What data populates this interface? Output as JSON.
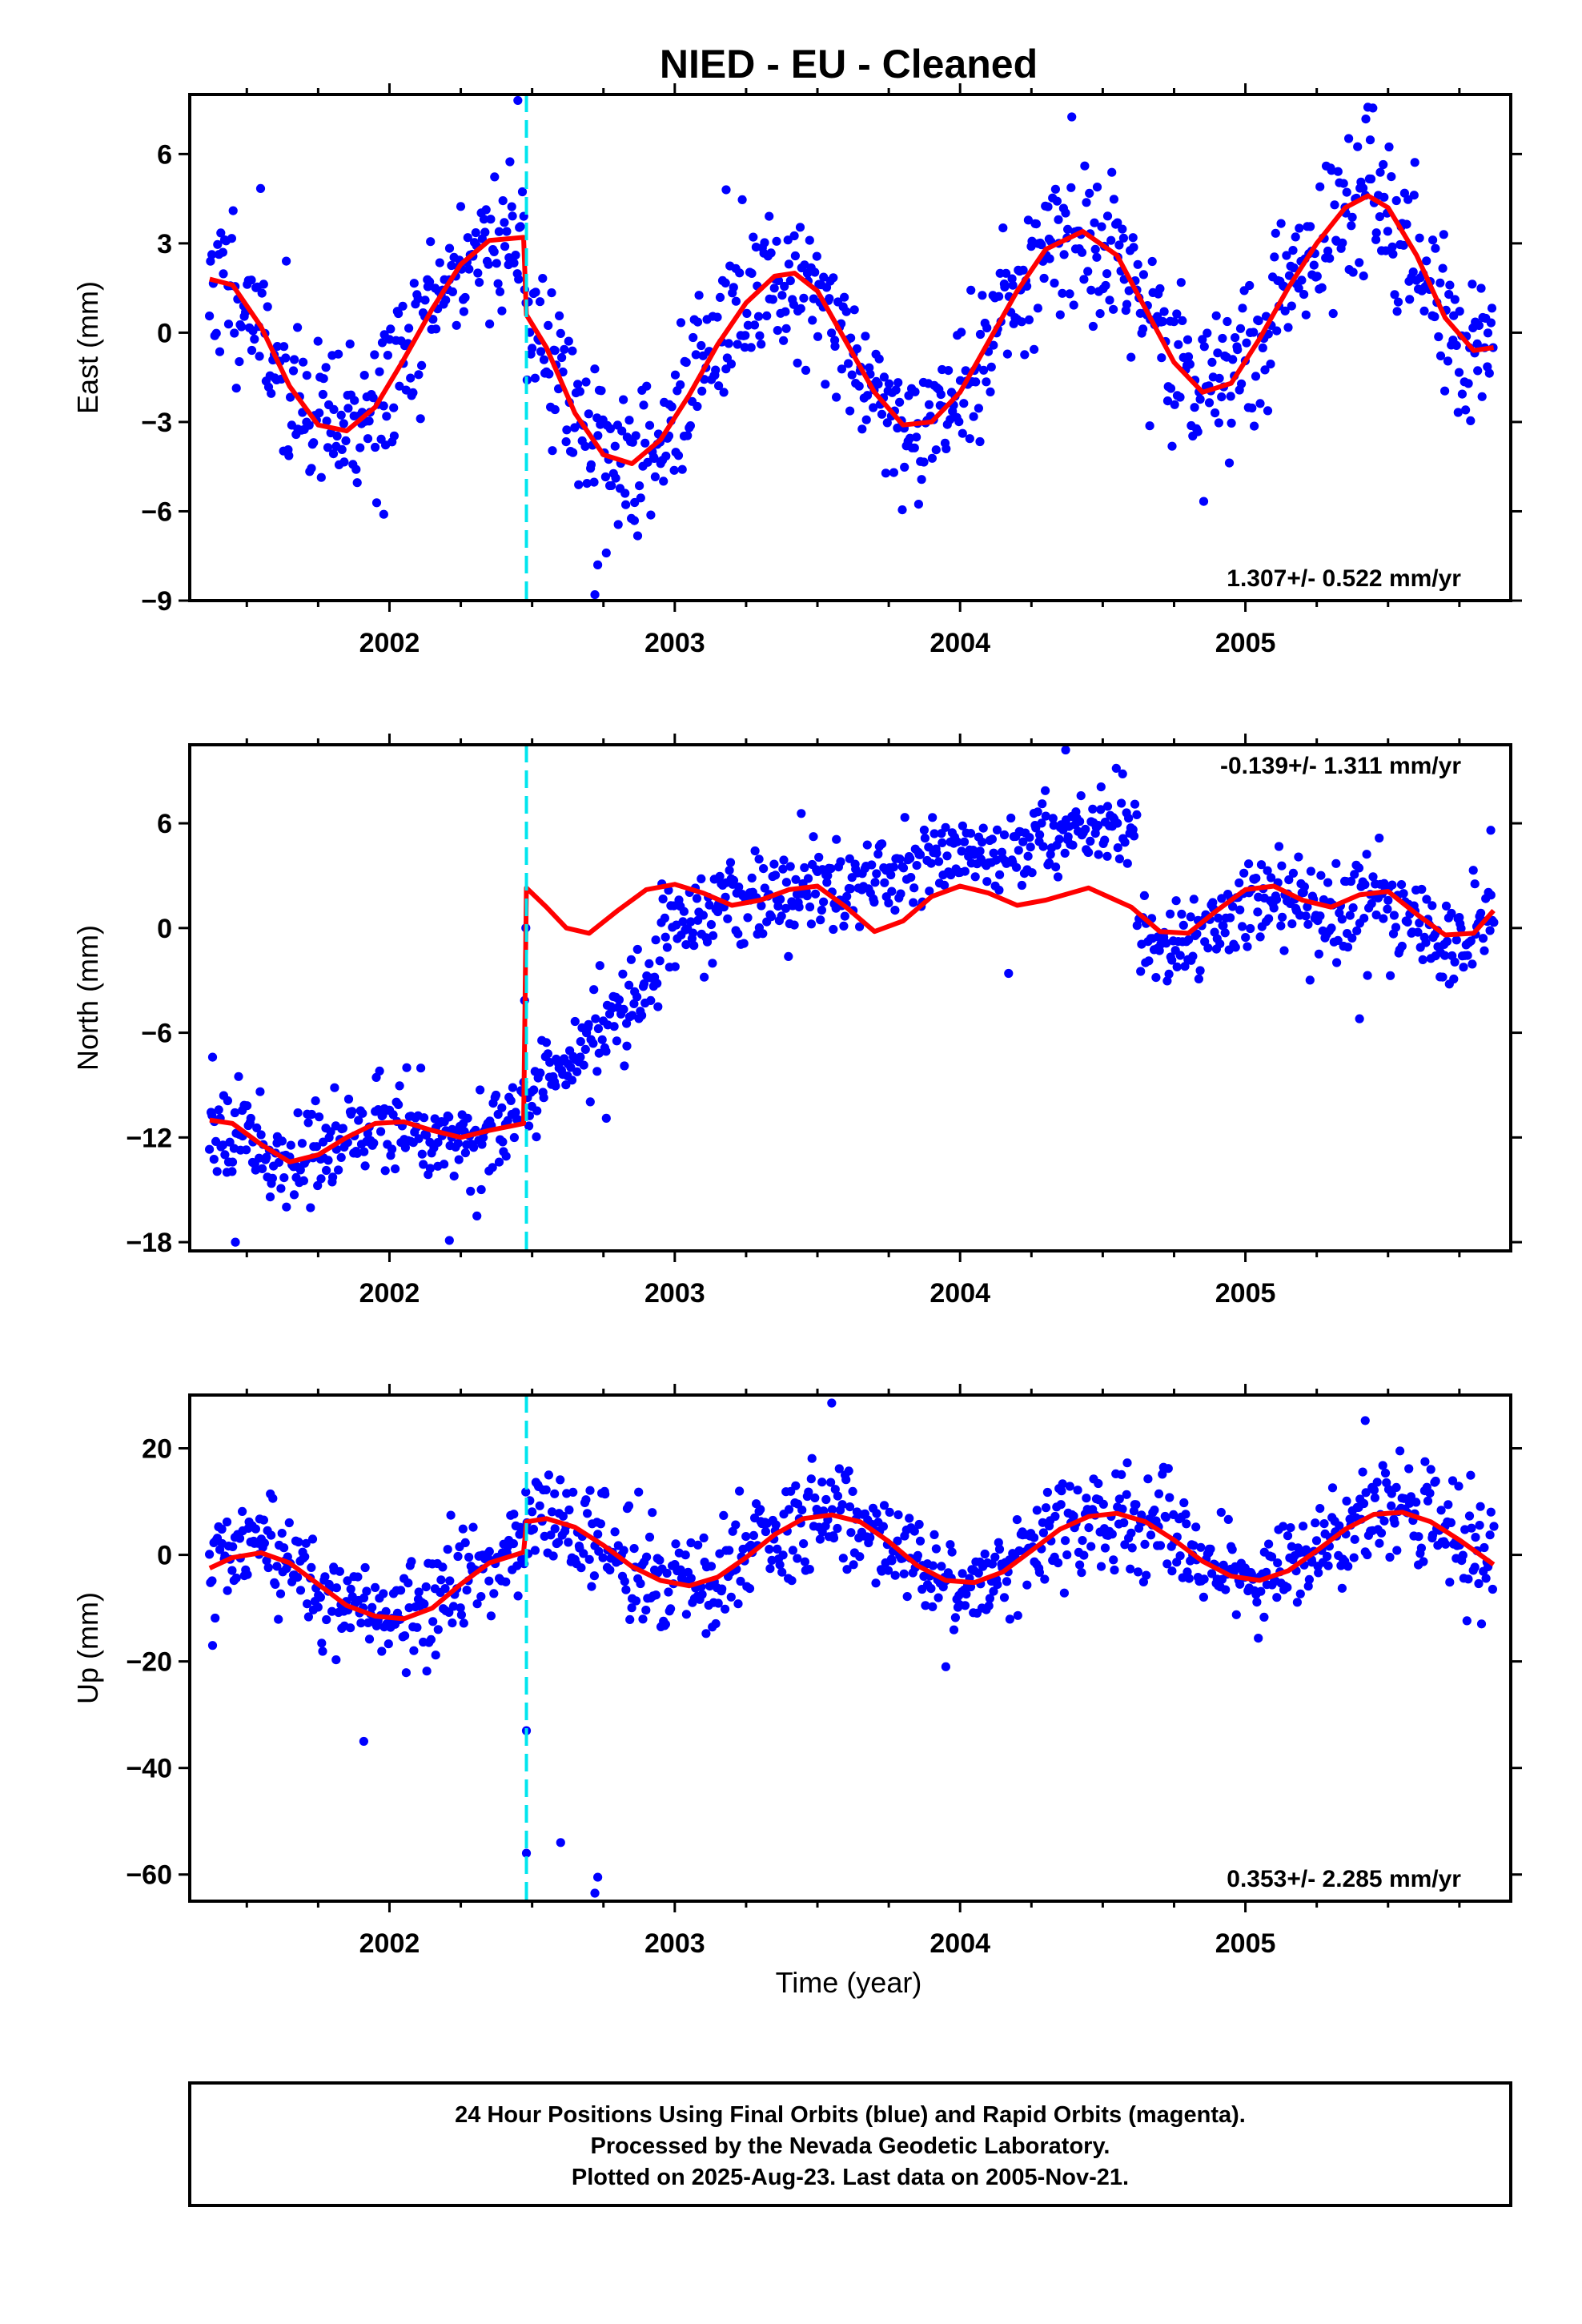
{
  "title": "NIED  - EU - Cleaned",
  "x_axis_label": "Time (year)",
  "footer": {
    "lines": [
      "24 Hour Positions Using Final Orbits (blue) and Rapid Orbits (magenta).",
      "Processed by the Nevada Geodetic Laboratory.",
      "Plotted on 2025-Aug-23. Last data on 2005-Nov-21."
    ]
  },
  "colors": {
    "points": "#0000ff",
    "model": "#ff0000",
    "offset_line": "#00e5ee"
  },
  "chart_data": [
    {
      "type": "scatter",
      "ylabel": "East (mm)",
      "xlim": [
        2001.3,
        2005.93
      ],
      "ylim": [
        -9,
        8
      ],
      "xticks": [
        2002,
        2003,
        2004,
        2005
      ],
      "yticks": [
        -9,
        -6,
        -3,
        0,
        3,
        6
      ],
      "yticklabels": [
        "−9",
        "−6",
        "−3",
        "0",
        "3",
        "6"
      ],
      "offset_epoch": 2002.48,
      "rate_text": "1.307+/- 0.522 mm/yr",
      "rate_position": "bottom-right",
      "model": {
        "x": [
          2001.37,
          2001.45,
          2001.55,
          2001.65,
          2001.75,
          2001.85,
          2001.95,
          2002.05,
          2002.15,
          2002.25,
          2002.35,
          2002.47,
          2002.48,
          2002.55,
          2002.65,
          2002.75,
          2002.85,
          2002.95,
          2003.05,
          2003.15,
          2003.25,
          2003.35,
          2003.42,
          2003.5,
          2003.6,
          2003.7,
          2003.8,
          2003.9,
          2004.0,
          2004.1,
          2004.2,
          2004.3,
          2004.43,
          2004.55,
          2004.65,
          2004.75,
          2004.85,
          2004.95,
          2005.05,
          2005.15,
          2005.25,
          2005.35,
          2005.43,
          2005.5,
          2005.6,
          2005.7,
          2005.8,
          2005.87
        ],
        "y": [
          1.8,
          1.6,
          0.2,
          -1.8,
          -3.1,
          -3.3,
          -2.5,
          -0.9,
          0.8,
          2.3,
          3.1,
          3.2,
          0.6,
          -0.5,
          -2.7,
          -4.1,
          -4.4,
          -3.6,
          -2.1,
          -0.4,
          1.0,
          1.9,
          2.0,
          1.4,
          -0.3,
          -2.0,
          -3.1,
          -3.0,
          -2.0,
          -0.3,
          1.4,
          2.8,
          3.4,
          2.6,
          0.8,
          -1.0,
          -2.0,
          -1.7,
          -0.2,
          1.5,
          3.0,
          4.2,
          4.6,
          4.2,
          2.6,
          0.5,
          -0.6,
          -0.5
        ]
      },
      "points": {
        "seed": 11,
        "count": 1000,
        "x_range": [
          2001.37,
          2005.87
        ],
        "scatter": 1.3,
        "outliers": [
          {
            "x": 2002.45,
            "y": 7.8
          },
          {
            "x": 2002.58,
            "y": -0.6
          },
          {
            "x": 2002.73,
            "y": -7.8
          },
          {
            "x": 2002.72,
            "y": -8.8
          },
          {
            "x": 2002.76,
            "y": -7.4
          },
          {
            "x": 2001.98,
            "y": -6.1
          },
          {
            "x": 2003.18,
            "y": 4.8
          }
        ]
      }
    },
    {
      "type": "scatter",
      "ylabel": "North (mm)",
      "xlim": [
        2001.3,
        2005.93
      ],
      "ylim": [
        -18.5,
        10.5
      ],
      "xticks": [
        2002,
        2003,
        2004,
        2005
      ],
      "yticks": [
        -18,
        -12,
        -6,
        0,
        6
      ],
      "yticklabels": [
        "−18",
        "−12",
        "−6",
        "0",
        "6"
      ],
      "offset_epoch": 2002.48,
      "rate_text": "-0.139+/- 1.311 mm/yr",
      "rate_position": "top-right",
      "model": {
        "x": [
          2001.37,
          2001.45,
          2001.55,
          2001.65,
          2001.75,
          2001.85,
          2001.95,
          2002.05,
          2002.15,
          2002.25,
          2002.35,
          2002.47,
          2002.48,
          2002.55,
          2002.62,
          2002.7,
          2002.8,
          2002.9,
          2003.0,
          2003.1,
          2003.2,
          2003.3,
          2003.4,
          2003.5,
          2003.6,
          2003.7,
          2003.8,
          2003.9,
          2004.0,
          2004.1,
          2004.2,
          2004.3,
          2004.45,
          2004.6,
          2004.7,
          2004.8,
          2004.9,
          2005.0,
          2005.1,
          2005.2,
          2005.3,
          2005.4,
          2005.5,
          2005.6,
          2005.7,
          2005.8,
          2005.87
        ],
        "y": [
          -11.0,
          -11.2,
          -12.4,
          -13.4,
          -13.0,
          -12.0,
          -11.2,
          -11.1,
          -11.6,
          -12.0,
          -11.6,
          -11.2,
          2.3,
          1.2,
          0.0,
          -0.3,
          1.0,
          2.2,
          2.5,
          2.0,
          1.3,
          1.6,
          2.2,
          2.4,
          1.2,
          -0.2,
          0.4,
          1.8,
          2.4,
          2.0,
          1.3,
          1.6,
          2.3,
          1.2,
          -0.2,
          -0.3,
          1.0,
          2.2,
          2.4,
          1.6,
          1.2,
          1.9,
          2.1,
          0.8,
          -0.4,
          -0.3,
          1.0
        ]
      },
      "points": {
        "seed": 23,
        "count": 1000,
        "x_range": [
          2001.37,
          2005.87
        ],
        "scatter": 1.3,
        "outliers": [
          {
            "x": 2001.38,
            "y": -7.4
          },
          {
            "x": 2001.46,
            "y": -18.0
          },
          {
            "x": 2002.21,
            "y": -17.9
          },
          {
            "x": 2004.37,
            "y": 10.2
          },
          {
            "x": 2004.17,
            "y": -2.6
          },
          {
            "x": 2005.4,
            "y": -5.2
          },
          {
            "x": 2005.86,
            "y": 5.6
          },
          {
            "x": 2002.76,
            "y": -10.9
          }
        ]
      }
    },
    {
      "type": "scatter",
      "ylabel": "Up (mm)",
      "xlim": [
        2001.3,
        2005.93
      ],
      "ylim": [
        -65,
        30
      ],
      "xticks": [
        2002,
        2003,
        2004,
        2005
      ],
      "yticks": [
        -60,
        -40,
        -20,
        0,
        20
      ],
      "yticklabels": [
        "−60",
        "−40",
        "−20",
        "0",
        "20"
      ],
      "offset_epoch": 2002.48,
      "rate_text": "0.353+/- 2.285 mm/yr",
      "rate_position": "bottom-right",
      "model": {
        "x": [
          2001.37,
          2001.45,
          2001.55,
          2001.65,
          2001.75,
          2001.85,
          2001.95,
          2002.05,
          2002.15,
          2002.25,
          2002.35,
          2002.47,
          2002.48,
          2002.55,
          2002.65,
          2002.75,
          2002.85,
          2002.95,
          2003.05,
          2003.15,
          2003.25,
          2003.35,
          2003.45,
          2003.55,
          2003.65,
          2003.75,
          2003.85,
          2003.95,
          2004.05,
          2004.15,
          2004.25,
          2004.35,
          2004.45,
          2004.55,
          2004.65,
          2004.75,
          2004.85,
          2004.95,
          2005.05,
          2005.15,
          2005.25,
          2005.35,
          2005.45,
          2005.55,
          2005.65,
          2005.75,
          2005.87
        ],
        "y": [
          -2.5,
          -0.5,
          0.4,
          -1.5,
          -5.5,
          -9.5,
          -11.5,
          -12.0,
          -10.0,
          -5.5,
          -1.5,
          0.5,
          6.2,
          6.8,
          5.2,
          1.8,
          -2.2,
          -4.8,
          -5.8,
          -4.2,
          -0.5,
          3.8,
          6.8,
          7.5,
          6.2,
          2.5,
          -2.0,
          -4.8,
          -5.2,
          -3.2,
          0.8,
          4.8,
          7.2,
          7.8,
          6.2,
          2.8,
          -1.2,
          -4.0,
          -4.8,
          -3.0,
          0.8,
          4.8,
          7.6,
          8.0,
          6.2,
          2.8,
          -1.8
        ]
      },
      "points": {
        "seed": 37,
        "count": 1000,
        "x_range": [
          2001.37,
          2005.87
        ],
        "scatter": 4.8,
        "outliers": [
          {
            "x": 2001.38,
            "y": -17.0
          },
          {
            "x": 2001.91,
            "y": -35.0
          },
          {
            "x": 2002.48,
            "y": -33.0
          },
          {
            "x": 2002.48,
            "y": -56.0
          },
          {
            "x": 2002.6,
            "y": -54.0
          },
          {
            "x": 2002.72,
            "y": -63.5
          },
          {
            "x": 2002.73,
            "y": -60.5
          },
          {
            "x": 2003.95,
            "y": -21.0
          },
          {
            "x": 2003.55,
            "y": 28.5
          },
          {
            "x": 2005.42,
            "y": 25.2
          }
        ]
      }
    }
  ]
}
